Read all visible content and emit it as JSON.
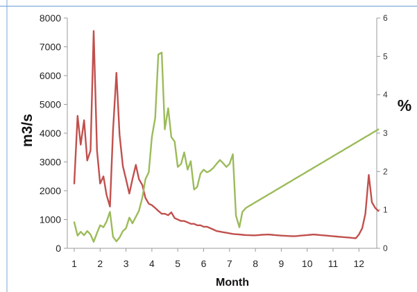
{
  "chart_data": {
    "type": "line",
    "title": "",
    "xlabel": "Month",
    "ylabel_left": "m3/s",
    "ylabel_right": "%",
    "xlim": [
      1,
      12.8
    ],
    "ylim_left": [
      0,
      8000
    ],
    "ylim_right": [
      0,
      6
    ],
    "x_ticks": [
      "1",
      "2",
      "3",
      "4",
      "5",
      "6",
      "7",
      "8",
      "9",
      "10",
      "11",
      "12"
    ],
    "y_left_ticks": [
      "0",
      "1000",
      "2000",
      "3000",
      "4000",
      "5000",
      "6000",
      "7000",
      "8000"
    ],
    "y_right_ticks": [
      "0",
      "1",
      "2",
      "3",
      "4",
      "5",
      "6"
    ],
    "grid": false,
    "legend": "none",
    "series": [
      {
        "axis": "left",
        "color": "#c0504d",
        "x": [
          1.0,
          1.13,
          1.25,
          1.38,
          1.5,
          1.63,
          1.75,
          1.88,
          2.0,
          2.13,
          2.25,
          2.38,
          2.5,
          2.63,
          2.75,
          2.88,
          3.0,
          3.13,
          3.25,
          3.38,
          3.5,
          3.63,
          3.75,
          3.88,
          4.0,
          4.13,
          4.25,
          4.38,
          4.5,
          4.63,
          4.75,
          4.88,
          5.0,
          5.13,
          5.25,
          5.38,
          5.5,
          5.63,
          5.75,
          5.88,
          6.0,
          6.13,
          6.25,
          6.38,
          6.5,
          6.63,
          6.75,
          6.88,
          7.0,
          7.13,
          7.25,
          7.38,
          7.5,
          7.63,
          7.75,
          7.88,
          8.0,
          8.13,
          8.25,
          8.38,
          8.5,
          8.63,
          8.75,
          8.88,
          9.0,
          9.13,
          9.25,
          9.38,
          9.5,
          9.63,
          9.75,
          9.88,
          10.0,
          10.13,
          10.25,
          10.38,
          10.5,
          10.63,
          10.75,
          10.88,
          11.0,
          11.13,
          11.25,
          11.38,
          11.5,
          11.63,
          11.75,
          11.88,
          12.0,
          12.13,
          12.25,
          12.38,
          12.5,
          12.63,
          12.75
        ],
        "values": [
          2250,
          4600,
          3600,
          4450,
          3050,
          3400,
          7550,
          3400,
          2250,
          2500,
          1850,
          1450,
          4100,
          6100,
          3950,
          2850,
          2400,
          1900,
          2400,
          2900,
          2400,
          2200,
          1750,
          1550,
          1500,
          1400,
          1300,
          1200,
          1200,
          1150,
          1250,
          1050,
          1000,
          950,
          950,
          900,
          850,
          850,
          800,
          800,
          750,
          750,
          700,
          650,
          600,
          580,
          560,
          540,
          520,
          500,
          490,
          480,
          470,
          460,
          455,
          450,
          450,
          460,
          470,
          475,
          480,
          470,
          460,
          450,
          440,
          435,
          430,
          425,
          420,
          430,
          440,
          450,
          460,
          470,
          480,
          470,
          460,
          450,
          440,
          430,
          420,
          410,
          400,
          390,
          380,
          370,
          360,
          350,
          480,
          700,
          1200,
          2550,
          1600,
          1400,
          1300
        ]
      },
      {
        "axis": "right",
        "color": "#9bbb59",
        "x": [
          1.0,
          1.13,
          1.25,
          1.38,
          1.5,
          1.63,
          1.75,
          1.88,
          2.0,
          2.13,
          2.25,
          2.38,
          2.5,
          2.63,
          2.75,
          2.88,
          3.0,
          3.13,
          3.25,
          3.38,
          3.5,
          3.63,
          3.75,
          3.88,
          4.0,
          4.13,
          4.25,
          4.38,
          4.5,
          4.63,
          4.75,
          4.88,
          5.0,
          5.13,
          5.25,
          5.38,
          5.5,
          5.63,
          5.75,
          5.88,
          6.0,
          6.13,
          6.25,
          6.38,
          6.5,
          6.63,
          6.75,
          6.88,
          7.0,
          7.13,
          7.25,
          7.38,
          7.5,
          7.63,
          7.75,
          7.88,
          8.0,
          8.13,
          8.25,
          8.38,
          8.5,
          8.63,
          8.75,
          8.88,
          9.0,
          9.13,
          9.25,
          9.38,
          9.5,
          9.63,
          9.75,
          9.88,
          10.0,
          10.13,
          10.25,
          10.38,
          10.5,
          10.63,
          10.75,
          10.88,
          11.0,
          11.13,
          11.25,
          11.38,
          11.5,
          11.63,
          11.75,
          11.88,
          12.0,
          12.13,
          12.25,
          12.38,
          12.5,
          12.63,
          12.75
        ],
        "values": [
          0.68,
          0.33,
          0.43,
          0.34,
          0.45,
          0.36,
          0.17,
          0.4,
          0.6,
          0.55,
          0.7,
          0.95,
          0.3,
          0.18,
          0.28,
          0.45,
          0.52,
          0.8,
          0.65,
          0.82,
          0.98,
          1.32,
          1.8,
          1.98,
          2.9,
          3.4,
          5.05,
          5.1,
          3.1,
          3.65,
          2.9,
          2.78,
          2.12,
          2.2,
          2.5,
          2.05,
          2.27,
          1.53,
          1.6,
          1.95,
          2.05,
          1.98,
          2.02,
          2.1,
          2.2,
          2.3,
          2.22,
          2.12,
          2.2,
          2.45,
          0.85,
          0.55,
          0.95,
          1.05,
          1.1,
          1.15,
          1.2,
          1.25,
          1.3,
          1.35,
          1.4,
          1.45,
          1.5,
          1.55,
          1.6,
          1.65,
          1.7,
          1.75,
          1.8,
          1.85,
          1.9,
          1.95,
          2.0,
          2.05,
          2.1,
          2.15,
          2.2,
          2.25,
          2.3,
          2.35,
          2.4,
          2.45,
          2.5,
          2.55,
          2.6,
          2.65,
          2.7,
          2.75,
          2.8,
          2.85,
          2.9,
          2.95,
          3.0,
          3.05,
          3.1
        ]
      }
    ]
  },
  "colors": {
    "frame": "#7aa9d6",
    "axis": "#9a9a9a",
    "text": "#222222"
  }
}
